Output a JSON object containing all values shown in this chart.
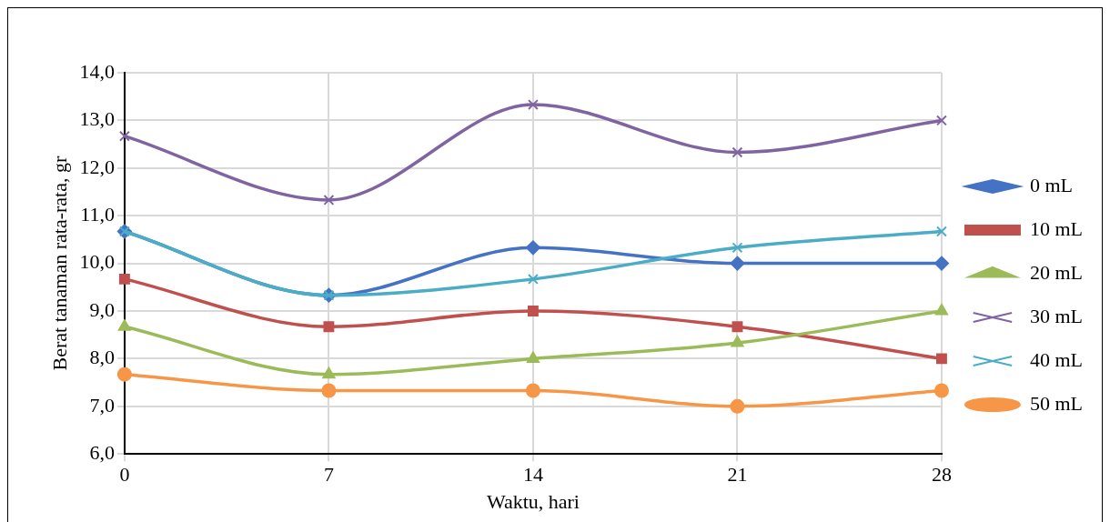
{
  "chart_data": {
    "type": "line",
    "xlabel": "Waktu, hari",
    "ylabel": "Berat tanaman rata-rata, gr",
    "categories": [
      "0",
      "7",
      "14",
      "21",
      "28"
    ],
    "ylim": [
      6,
      14
    ],
    "yticks": [
      {
        "value": 6,
        "label": "6,0"
      },
      {
        "value": 7,
        "label": "7,0"
      },
      {
        "value": 8,
        "label": "8,0"
      },
      {
        "value": 9,
        "label": "9,0"
      },
      {
        "value": 10,
        "label": "10,0"
      },
      {
        "value": 11,
        "label": "11,0"
      },
      {
        "value": 12,
        "label": "12,0"
      },
      {
        "value": 13,
        "label": "13,0"
      },
      {
        "value": 14,
        "label": "14,0"
      }
    ],
    "grid": true,
    "legend": "right",
    "series": [
      {
        "name": "0 mL",
        "color": "#4472c4",
        "marker": "diamond",
        "values": [
          10.67,
          9.33,
          10.33,
          10.0,
          10.0
        ]
      },
      {
        "name": "10 mL",
        "color": "#c0504d",
        "marker": "square",
        "values": [
          9.67,
          8.67,
          9.0,
          8.67,
          8.0
        ]
      },
      {
        "name": "20 mL",
        "color": "#9bbb59",
        "marker": "triangle",
        "values": [
          8.67,
          7.67,
          8.0,
          8.33,
          9.0
        ]
      },
      {
        "name": "30 mL",
        "color": "#8064a2",
        "marker": "cross",
        "values": [
          12.67,
          11.33,
          13.33,
          12.33,
          13.0
        ]
      },
      {
        "name": "40 mL",
        "color": "#4bacc6",
        "marker": "cross",
        "values": [
          10.67,
          9.33,
          9.67,
          10.33,
          10.67
        ]
      },
      {
        "name": "50 mL",
        "color": "#f79646",
        "marker": "circle",
        "values": [
          7.67,
          7.33,
          7.33,
          7.0,
          7.33
        ]
      }
    ]
  }
}
